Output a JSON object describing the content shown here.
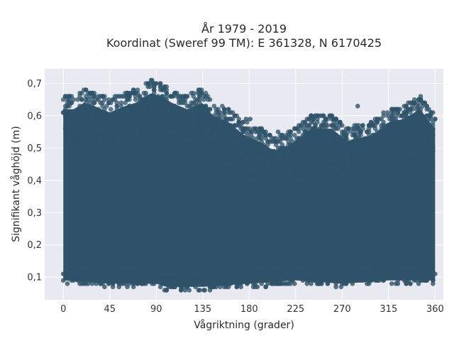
{
  "chart_data": {
    "type": "scatter",
    "title_line1": "År 1979 - 2019",
    "title_line2": "Koordinat (Sweref 99 TM): E 361328, N 6170425",
    "xlabel": "Vågriktning (grader)",
    "ylabel": "Signifikant våghöjd (m)",
    "xlim": [
      -18,
      368
    ],
    "ylim": [
      0.03,
      0.745
    ],
    "x_ticks": [
      {
        "value": 0,
        "label": "0"
      },
      {
        "value": 45,
        "label": "45"
      },
      {
        "value": 90,
        "label": "90"
      },
      {
        "value": 135,
        "label": "135"
      },
      {
        "value": 180,
        "label": "180"
      },
      {
        "value": 225,
        "label": "225"
      },
      {
        "value": 270,
        "label": "270"
      },
      {
        "value": 315,
        "label": "315"
      },
      {
        "value": 360,
        "label": "360"
      }
    ],
    "y_ticks": [
      {
        "value": 0.1,
        "label": "0,1"
      },
      {
        "value": 0.2,
        "label": "0,2"
      },
      {
        "value": 0.3,
        "label": "0,3"
      },
      {
        "value": 0.4,
        "label": "0,4"
      },
      {
        "value": 0.5,
        "label": "0,5"
      },
      {
        "value": 0.6,
        "label": "0,6"
      },
      {
        "value": 0.7,
        "label": "0,7"
      }
    ],
    "grid": true,
    "marker_color": "#2f5369",
    "plot_background": "#e8e9f1",
    "series": [
      {
        "envelope_upper": [
          [
            0,
            0.66
          ],
          [
            10,
            0.66
          ],
          [
            20,
            0.68
          ],
          [
            30,
            0.67
          ],
          [
            45,
            0.65
          ],
          [
            60,
            0.67
          ],
          [
            70,
            0.68
          ],
          [
            80,
            0.7
          ],
          [
            85,
            0.71
          ],
          [
            95,
            0.7
          ],
          [
            105,
            0.68
          ],
          [
            120,
            0.66
          ],
          [
            135,
            0.68
          ],
          [
            145,
            0.64
          ],
          [
            160,
            0.62
          ],
          [
            175,
            0.58
          ],
          [
            190,
            0.56
          ],
          [
            205,
            0.53
          ],
          [
            220,
            0.55
          ],
          [
            240,
            0.6
          ],
          [
            260,
            0.6
          ],
          [
            275,
            0.56
          ],
          [
            285,
            0.57
          ],
          [
            300,
            0.58
          ],
          [
            315,
            0.62
          ],
          [
            330,
            0.63
          ],
          [
            345,
            0.66
          ],
          [
            355,
            0.62
          ],
          [
            360,
            0.6
          ]
        ],
        "envelope_lower": [
          [
            0,
            0.08
          ],
          [
            45,
            0.07
          ],
          [
            90,
            0.07
          ],
          [
            100,
            0.06
          ],
          [
            135,
            0.06
          ],
          [
            180,
            0.07
          ],
          [
            225,
            0.08
          ],
          [
            270,
            0.07
          ],
          [
            315,
            0.08
          ],
          [
            360,
            0.08
          ]
        ],
        "outliers": [
          [
            85,
            0.71
          ],
          [
            87,
            0.7
          ],
          [
            131,
            0.68
          ],
          [
            134,
            0.67
          ],
          [
            177,
            0.59
          ],
          [
            181,
            0.59
          ],
          [
            208,
            0.55
          ],
          [
            224,
            0.56
          ],
          [
            244,
            0.6
          ],
          [
            258,
            0.6
          ],
          [
            260,
            0.59
          ],
          [
            283,
            0.53
          ],
          [
            285,
            0.63
          ],
          [
            298,
            0.58
          ],
          [
            320,
            0.61
          ],
          [
            346,
            0.66
          ],
          [
            355,
            0.6
          ],
          [
            100,
            0.06
          ],
          [
            131,
            0.06
          ],
          [
            137,
            0.06
          ],
          [
            269,
            0.07
          ]
        ]
      }
    ]
  }
}
